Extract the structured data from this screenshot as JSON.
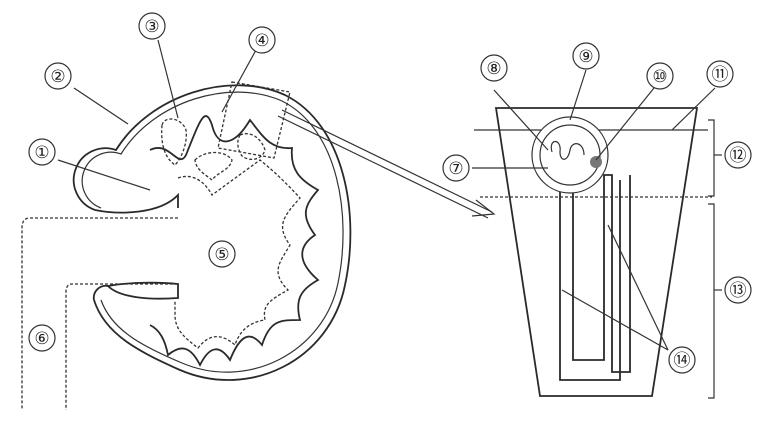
{
  "labels": {
    "l1": "①",
    "l2": "②",
    "l3": "③",
    "l4": "④",
    "l5": "⑤",
    "l6": "⑥",
    "l7": "⑦",
    "l8": "⑧",
    "l9": "⑨",
    "l10": "⑩",
    "l11": "⑪",
    "l12": "⑫",
    "l13": "⑬",
    "l14": "⑭"
  },
  "colors": {
    "line": "#333333",
    "node": "#777777",
    "background": "#ffffff"
  }
}
